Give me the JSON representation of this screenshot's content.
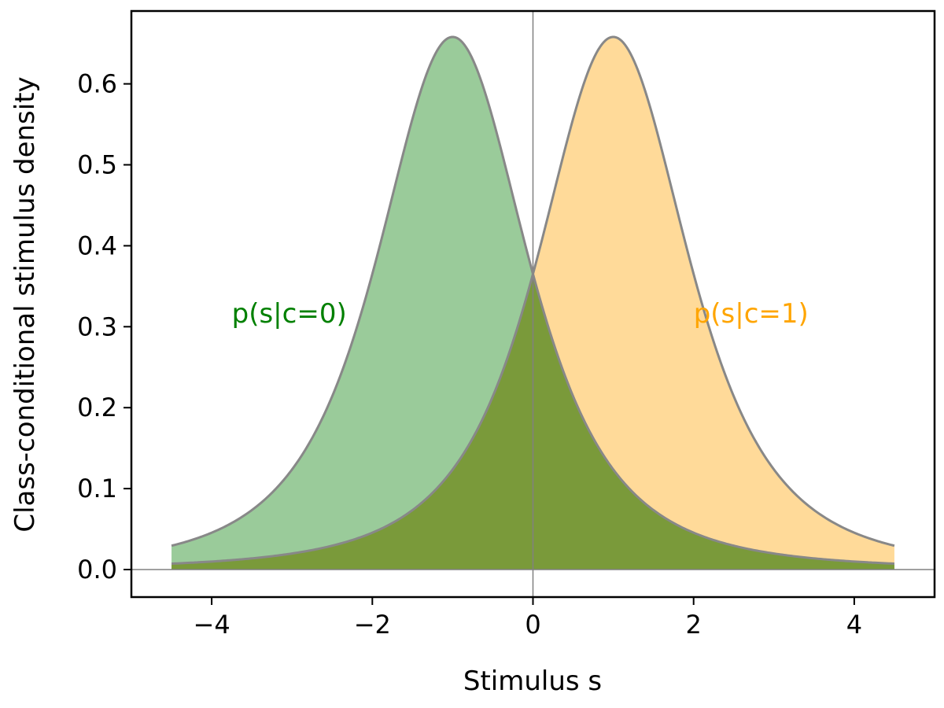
{
  "chart_data": {
    "type": "area",
    "xlabel": "Stimulus s",
    "ylabel": "Class-conditional stimulus density",
    "xlim": [
      -5,
      5
    ],
    "ylim": [
      -0.034,
      0.69
    ],
    "xticks": [
      -4,
      -2,
      0,
      2,
      4
    ],
    "xtick_labels": [
      "−4",
      "−2",
      "0",
      "2",
      "4"
    ],
    "yticks": [
      0.0,
      0.1,
      0.2,
      0.3,
      0.4,
      0.5,
      0.6
    ],
    "ytick_labels": [
      "0.0",
      "0.1",
      "0.2",
      "0.3",
      "0.4",
      "0.5",
      "0.6"
    ],
    "grid": false,
    "reference_lines": {
      "x": 0,
      "y": 0
    },
    "x_range": [
      -4.5,
      4.5
    ],
    "series": [
      {
        "name": "p(s|c=0)",
        "distribution": "Student-t",
        "location": -1,
        "df": 2.5,
        "peak": 0.658,
        "fill_color": "#9acb9a",
        "label_color": "#008000",
        "label_position": [
          -3.75,
          0.305
        ]
      },
      {
        "name": "p(s|c=1)",
        "distribution": "Student-t",
        "location": 1,
        "df": 2.5,
        "peak": 0.658,
        "fill_color": "#ffda99",
        "label_color": "#ffa500",
        "label_position": [
          2.0,
          0.305
        ]
      }
    ],
    "overlap_color": "#7a9a3a",
    "curve_color": "#888888"
  }
}
